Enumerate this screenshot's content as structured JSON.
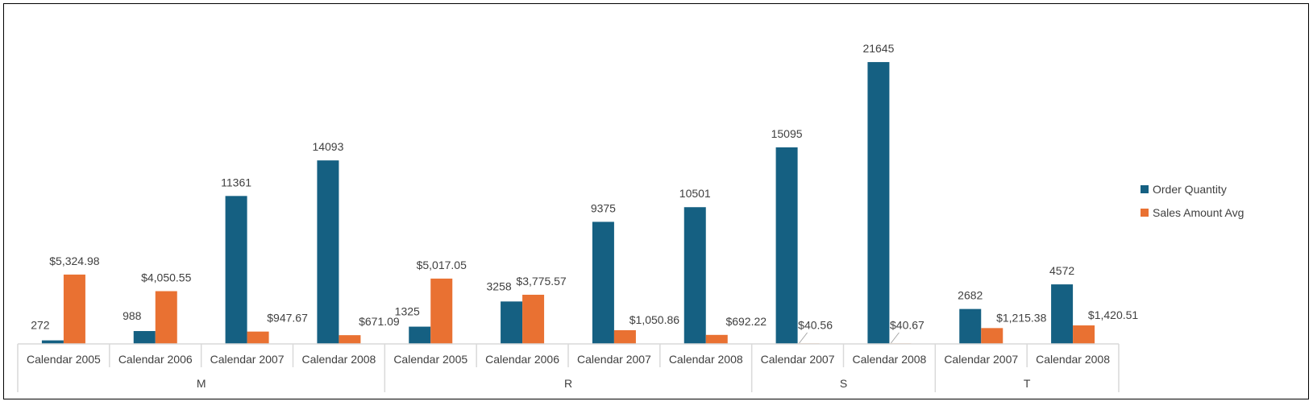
{
  "chart_data": {
    "type": "bar",
    "groups": [
      "M",
      "M",
      "M",
      "M",
      "R",
      "R",
      "R",
      "R",
      "S",
      "S",
      "T",
      "T"
    ],
    "group_labels": [
      "M",
      "R",
      "S",
      "T"
    ],
    "categories": [
      "Calendar 2005",
      "Calendar 2006",
      "Calendar 2007",
      "Calendar 2008",
      "Calendar 2005",
      "Calendar 2006",
      "Calendar 2007",
      "Calendar 2008",
      "Calendar 2007",
      "Calendar 2008",
      "Calendar 2007",
      "Calendar 2008"
    ],
    "series": [
      {
        "name": "Order Quantity",
        "color": "#156082",
        "values": [
          272,
          988,
          11361,
          14093,
          1325,
          3258,
          9375,
          10501,
          15095,
          21645,
          2682,
          4572
        ],
        "labels": [
          "272",
          "988",
          "11361",
          "14093",
          "1325",
          "3258",
          "9375",
          "10501",
          "15095",
          "21645",
          "2682",
          "4572"
        ]
      },
      {
        "name": "Sales Amount Avg",
        "color": "#E97132",
        "values": [
          5324.98,
          4050.55,
          947.67,
          671.09,
          5017.05,
          3775.57,
          1050.86,
          692.22,
          40.56,
          40.67,
          1215.38,
          1420.51
        ],
        "labels": [
          "$5,324.98",
          "$4,050.55",
          "$947.67",
          "$671.09",
          "$5,017.05",
          "$3,775.57",
          "$1,050.86",
          "$692.22",
          "$40.56",
          "$40.67",
          "$1,215.38",
          "$1,420.51"
        ]
      }
    ],
    "ylim": [
      0,
      24000
    ],
    "axes_visible": false,
    "grid": false,
    "legend": "right"
  }
}
